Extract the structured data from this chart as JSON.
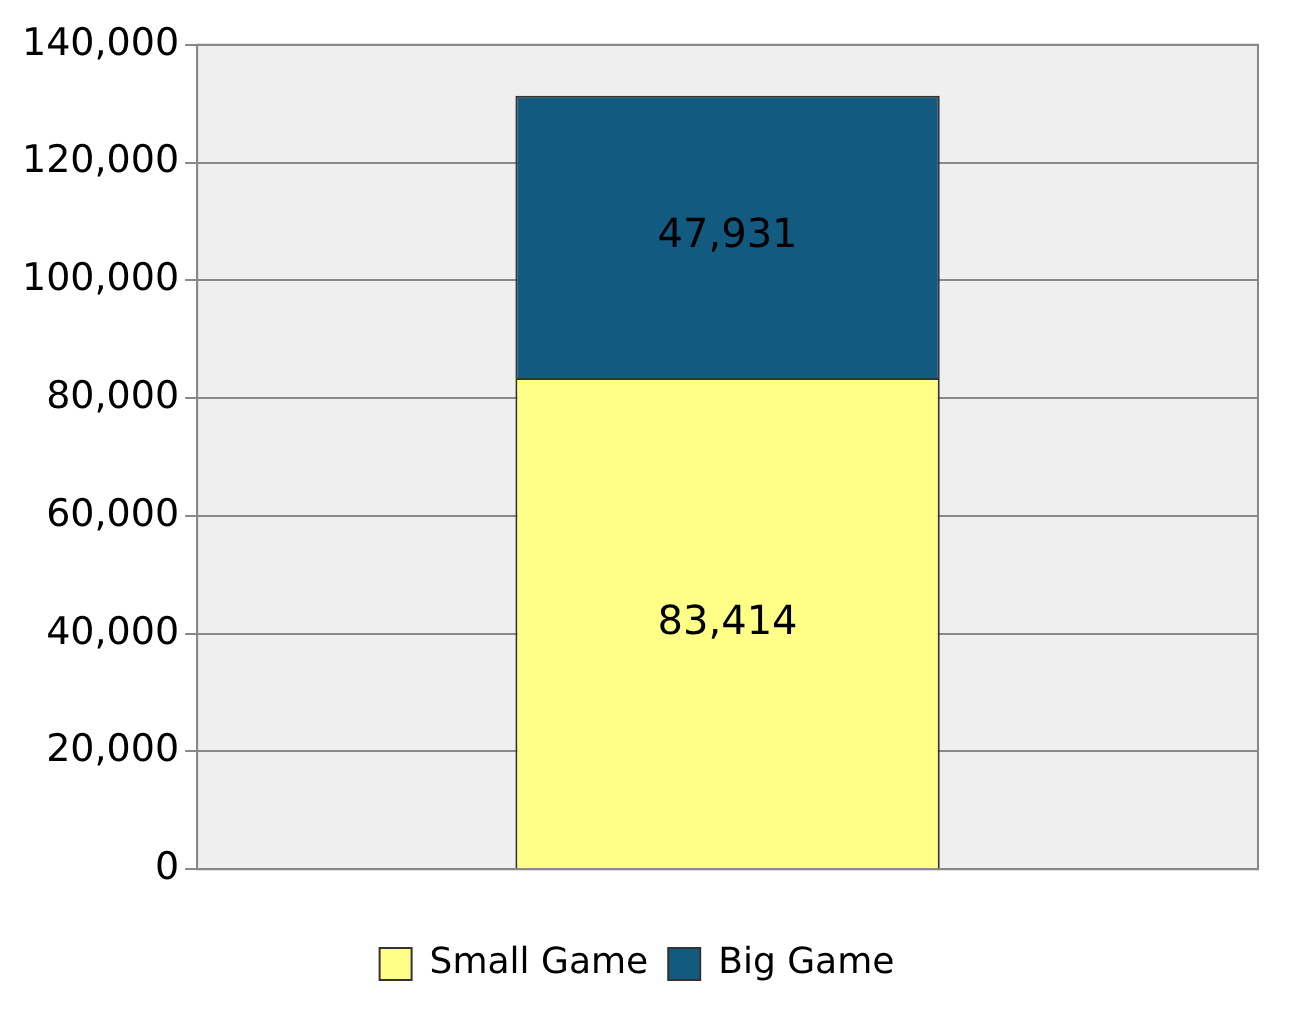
{
  "chart_data": {
    "type": "bar",
    "stacked": true,
    "categories": [
      null
    ],
    "series": [
      {
        "name": "Small Game",
        "color": "#ffff88",
        "values": [
          83414
        ],
        "value_labels": [
          "83,414"
        ]
      },
      {
        "name": "Big Game",
        "color": "#125a80",
        "values": [
          47931
        ],
        "value_labels": [
          "47,931"
        ]
      }
    ],
    "ylim": [
      0,
      140000
    ],
    "yticks": [
      0,
      {
        "value": 20000,
        "label": "20,000"
      },
      {
        "value": 40000,
        "label": "40,000"
      },
      {
        "value": 60000,
        "label": "60,000"
      },
      {
        "value": 80000,
        "label": "80,000"
      },
      {
        "value": 100000,
        "label": "100,000"
      },
      {
        "value": 120000,
        "label": "120,000"
      },
      {
        "value": 140000,
        "label": "140,000"
      }
    ],
    "grid": "y",
    "legend": "bottom"
  }
}
